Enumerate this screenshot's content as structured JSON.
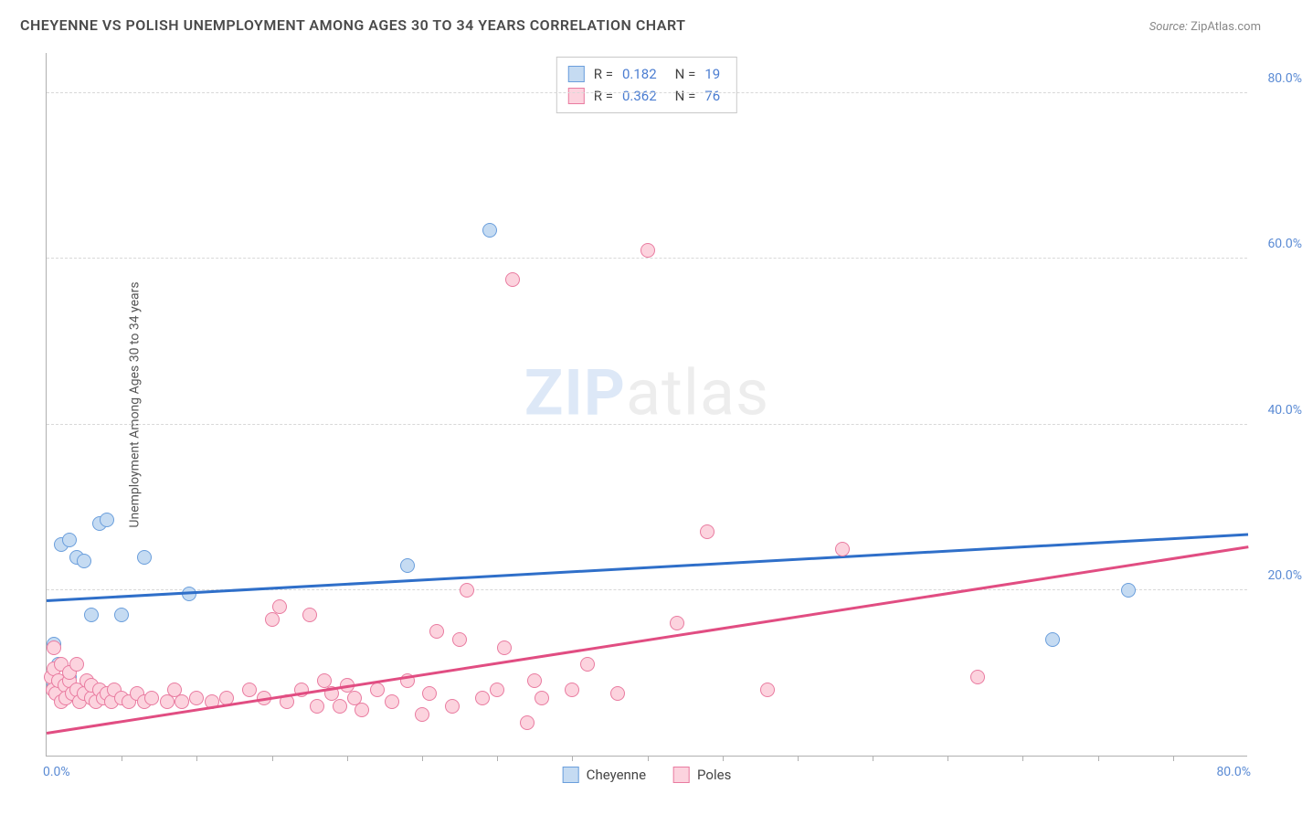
{
  "title": "CHEYENNE VS POLISH UNEMPLOYMENT AMONG AGES 30 TO 34 YEARS CORRELATION CHART",
  "source_label": "Source:",
  "source_value": "ZipAtlas.com",
  "y_axis_label": "Unemployment Among Ages 30 to 34 years",
  "watermark_zip": "ZIP",
  "watermark_atlas": "atlas",
  "chart": {
    "type": "scatter",
    "xlim": [
      0,
      80
    ],
    "ylim": [
      0,
      85
    ],
    "x_tick_labels": {
      "min": "0.0%",
      "max": "80.0%"
    },
    "y_ticks": [
      20,
      40,
      60,
      80
    ],
    "y_tick_labels": [
      "20.0%",
      "40.0%",
      "60.0%",
      "80.0%"
    ],
    "x_minor_ticks": [
      5,
      10,
      15,
      20,
      25,
      30,
      35,
      40,
      45,
      50,
      55,
      60,
      65,
      70,
      75
    ],
    "grid_color": "#d8d8d8",
    "axis_color": "#b0b0b0",
    "tick_label_color": "#5b8bd4",
    "point_radius": 8,
    "point_border_width": 1,
    "series": [
      {
        "name": "Cheyenne",
        "fill_color": "#c5dbf2",
        "border_color": "#6a9edc",
        "trend_color": "#2f6fc9",
        "trend_line": {
          "x1": 0,
          "y1": 19.0,
          "x2": 80,
          "y2": 27.0
        },
        "R_label": "R  =",
        "R_value": "0.182",
        "N_label": "N  =",
        "N_value": "19",
        "points": [
          [
            0.5,
            13.5
          ],
          [
            0.8,
            11.0
          ],
          [
            1.0,
            25.5
          ],
          [
            1.5,
            26.0
          ],
          [
            1.5,
            9.5
          ],
          [
            2.0,
            24.0
          ],
          [
            2.5,
            23.5
          ],
          [
            3.0,
            17.0
          ],
          [
            3.5,
            28.0
          ],
          [
            4.0,
            28.5
          ],
          [
            5.0,
            17.0
          ],
          [
            6.5,
            24.0
          ],
          [
            9.5,
            19.5
          ],
          [
            24.0,
            23.0
          ],
          [
            29.5,
            63.5
          ],
          [
            67.0,
            14.0
          ],
          [
            72.0,
            20.0
          ],
          [
            1.0,
            7.0
          ],
          [
            0.5,
            8.5
          ]
        ]
      },
      {
        "name": "Poles",
        "fill_color": "#fcd3de",
        "border_color": "#e97ba0",
        "trend_color": "#e14d82",
        "trend_line": {
          "x1": 0,
          "y1": 3.0,
          "x2": 80,
          "y2": 25.5
        },
        "R_label": "R  =",
        "R_value": "0.362",
        "N_label": "N  =",
        "N_value": "76",
        "points": [
          [
            0.3,
            9.5
          ],
          [
            0.4,
            8.0
          ],
          [
            0.5,
            10.5
          ],
          [
            0.6,
            7.5
          ],
          [
            0.8,
            9.0
          ],
          [
            1.0,
            11.0
          ],
          [
            1.0,
            6.5
          ],
          [
            1.2,
            8.5
          ],
          [
            1.3,
            7.0
          ],
          [
            1.5,
            9.0
          ],
          [
            1.5,
            10.0
          ],
          [
            1.7,
            7.5
          ],
          [
            2.0,
            8.0
          ],
          [
            2.0,
            11.0
          ],
          [
            2.2,
            6.5
          ],
          [
            2.5,
            7.5
          ],
          [
            2.7,
            9.0
          ],
          [
            3.0,
            7.0
          ],
          [
            3.0,
            8.5
          ],
          [
            3.3,
            6.5
          ],
          [
            3.5,
            8.0
          ],
          [
            3.8,
            7.0
          ],
          [
            4.0,
            7.5
          ],
          [
            4.3,
            6.5
          ],
          [
            4.5,
            8.0
          ],
          [
            5.0,
            7.0
          ],
          [
            5.5,
            6.5
          ],
          [
            6.0,
            7.5
          ],
          [
            6.5,
            6.5
          ],
          [
            7.0,
            7.0
          ],
          [
            8.0,
            6.5
          ],
          [
            8.5,
            8.0
          ],
          [
            9.0,
            6.5
          ],
          [
            10.0,
            7.0
          ],
          [
            11.0,
            6.5
          ],
          [
            12.0,
            7.0
          ],
          [
            13.5,
            8.0
          ],
          [
            14.5,
            7.0
          ],
          [
            15.0,
            16.5
          ],
          [
            15.5,
            18.0
          ],
          [
            16.0,
            6.5
          ],
          [
            17.0,
            8.0
          ],
          [
            17.5,
            17.0
          ],
          [
            18.0,
            6.0
          ],
          [
            18.5,
            9.0
          ],
          [
            19.0,
            7.5
          ],
          [
            19.5,
            6.0
          ],
          [
            20.0,
            8.5
          ],
          [
            20.5,
            7.0
          ],
          [
            21.0,
            5.5
          ],
          [
            22.0,
            8.0
          ],
          [
            23.0,
            6.5
          ],
          [
            24.0,
            9.0
          ],
          [
            25.0,
            5.0
          ],
          [
            25.5,
            7.5
          ],
          [
            26.0,
            15.0
          ],
          [
            27.0,
            6.0
          ],
          [
            27.5,
            14.0
          ],
          [
            28.0,
            20.0
          ],
          [
            29.0,
            7.0
          ],
          [
            30.0,
            8.0
          ],
          [
            30.5,
            13.0
          ],
          [
            31.0,
            57.5
          ],
          [
            32.0,
            4.0
          ],
          [
            32.5,
            9.0
          ],
          [
            33.0,
            7.0
          ],
          [
            35.0,
            8.0
          ],
          [
            36.0,
            11.0
          ],
          [
            38.0,
            7.5
          ],
          [
            40.0,
            61.0
          ],
          [
            42.0,
            16.0
          ],
          [
            44.0,
            27.0
          ],
          [
            48.0,
            8.0
          ],
          [
            53.0,
            25.0
          ],
          [
            62.0,
            9.5
          ],
          [
            0.5,
            13.0
          ]
        ]
      }
    ]
  },
  "legend_bottom": [
    {
      "label": "Cheyenne",
      "fill": "#c5dbf2",
      "border": "#6a9edc"
    },
    {
      "label": "Poles",
      "fill": "#fcd3de",
      "border": "#e97ba0"
    }
  ]
}
